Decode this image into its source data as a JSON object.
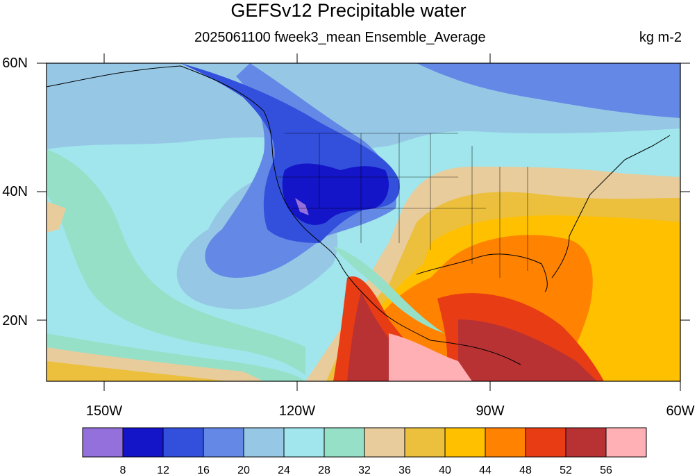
{
  "title": "GEFSv12 Precipitable water",
  "subtitle": "2025061100 fweek3_mean Ensemble_Average",
  "units": "kg m-2",
  "lat_labels": [
    "60N",
    "40N",
    "20N"
  ],
  "lon_labels": [
    "150W",
    "120W",
    "90W",
    "60W"
  ],
  "colorbar": {
    "colors": [
      "#9370db",
      "#1414c8",
      "#3250dc",
      "#6488e6",
      "#96c8e6",
      "#a0e6ec",
      "#96e0c8",
      "#e8cc9c",
      "#ecc03c",
      "#ffc000",
      "#ff8200",
      "#e83c14",
      "#b83234",
      "#ffb0b4"
    ],
    "labels": [
      "8",
      "12",
      "16",
      "20",
      "24",
      "28",
      "32",
      "36",
      "40",
      "44",
      "48",
      "52",
      "56"
    ]
  }
}
